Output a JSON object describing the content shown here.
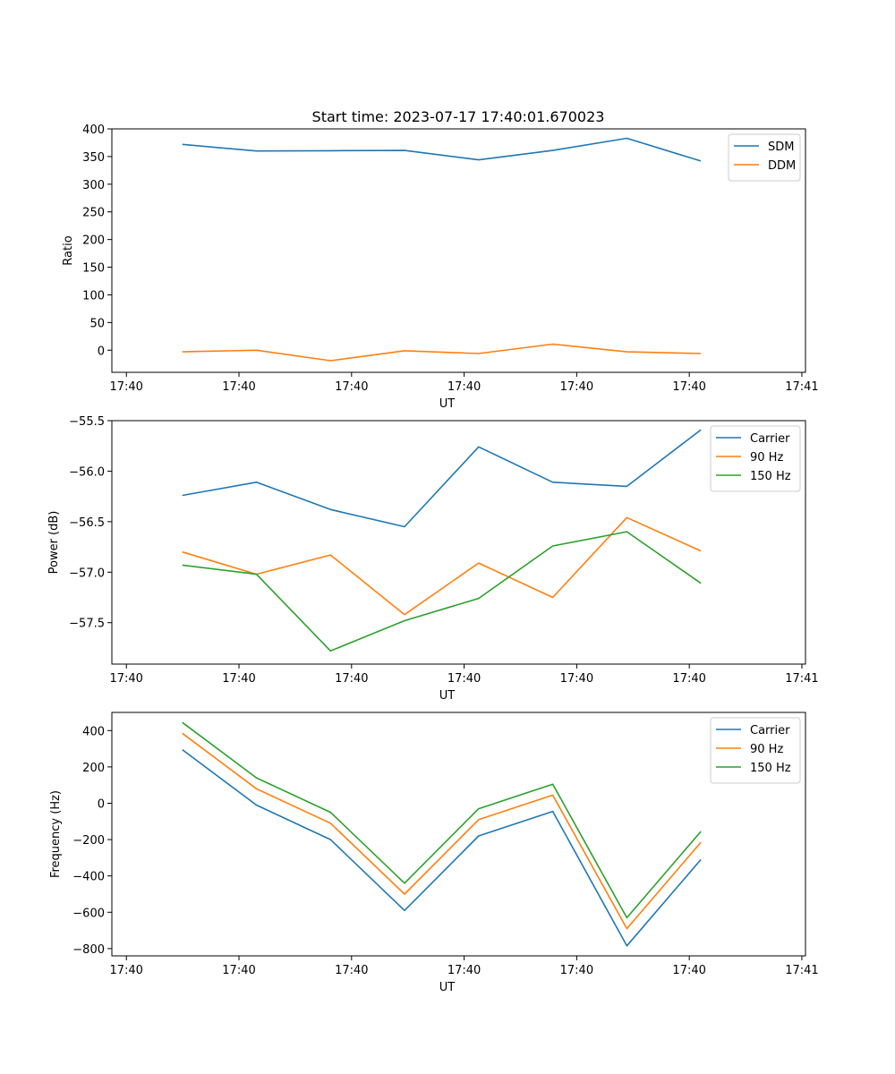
{
  "figure": {
    "title": "Start time: 2023-07-17 17:40:01.670023"
  },
  "chart_data": [
    {
      "type": "line",
      "xlabel": "UT",
      "ylabel": "Ratio",
      "xlim": [
        -0.35,
        9.2
      ],
      "xticks": [
        -0.15,
        1.4,
        2.95,
        4.5,
        6.05,
        7.6,
        9.15
      ],
      "xtick_labels": [
        "17:40",
        "17:40",
        "17:40",
        "17:40",
        "17:40",
        "17:40",
        "17:41"
      ],
      "ylim": [
        -40,
        400
      ],
      "yticks": [
        0,
        50,
        100,
        150,
        200,
        250,
        300,
        350,
        400
      ],
      "ytick_labels": [
        "0",
        "50",
        "100",
        "150",
        "200",
        "250",
        "300",
        "350",
        "400"
      ],
      "x": [
        0.62,
        1.64,
        2.66,
        3.68,
        4.7,
        5.72,
        6.74,
        7.76
      ],
      "legend": "top-right",
      "series": [
        {
          "name": "SDM",
          "color": "#1f77b4",
          "values": [
            372,
            360,
            360.5,
            361,
            344,
            361,
            383,
            342
          ]
        },
        {
          "name": "DDM",
          "color": "#ff7f0e",
          "values": [
            -3,
            0,
            -19,
            -1,
            -6,
            11,
            -3,
            -6
          ]
        }
      ]
    },
    {
      "type": "line",
      "xlabel": "UT",
      "ylabel": "Power (dB)",
      "xlim": [
        -0.35,
        9.2
      ],
      "xticks": [
        -0.15,
        1.4,
        2.95,
        4.5,
        6.05,
        7.6,
        9.15
      ],
      "xtick_labels": [
        "17:40",
        "17:40",
        "17:40",
        "17:40",
        "17:40",
        "17:40",
        "17:41"
      ],
      "ylim": [
        -57.91,
        -55.5
      ],
      "yticks": [
        -57.5,
        -57.0,
        -56.5,
        -56.0,
        -55.5
      ],
      "ytick_labels": [
        "−57.5",
        "−57.0",
        "−56.5",
        "−56.0",
        "−55.5"
      ],
      "x": [
        0.62,
        1.64,
        2.66,
        3.68,
        4.7,
        5.72,
        6.74,
        7.76
      ],
      "legend": "top-right",
      "series": [
        {
          "name": "Carrier",
          "color": "#1f77b4",
          "values": [
            -56.24,
            -56.11,
            -56.38,
            -56.55,
            -55.76,
            -56.11,
            -56.15,
            -55.59
          ]
        },
        {
          "name": "90 Hz",
          "color": "#ff7f0e",
          "values": [
            -56.8,
            -57.02,
            -56.83,
            -57.42,
            -56.91,
            -57.25,
            -56.46,
            -56.79
          ]
        },
        {
          "name": "150 Hz",
          "color": "#2ca02c",
          "values": [
            -56.93,
            -57.02,
            -57.78,
            -57.48,
            -57.26,
            -56.74,
            -56.6,
            -57.11
          ]
        }
      ]
    },
    {
      "type": "line",
      "xlabel": "UT",
      "ylabel": "Frequency (Hz)",
      "xlim": [
        -0.35,
        9.2
      ],
      "xticks": [
        -0.15,
        1.4,
        2.95,
        4.5,
        6.05,
        7.6,
        9.15
      ],
      "xtick_labels": [
        "17:40",
        "17:40",
        "17:40",
        "17:40",
        "17:40",
        "17:40",
        "17:41"
      ],
      "ylim": [
        -840,
        500
      ],
      "yticks": [
        -800,
        -600,
        -400,
        -200,
        0,
        200,
        400
      ],
      "ytick_labels": [
        "−800",
        "−600",
        "−400",
        "−200",
        "0",
        "200",
        "400"
      ],
      "x": [
        0.62,
        1.64,
        2.66,
        3.68,
        4.7,
        5.72,
        6.74,
        7.76
      ],
      "legend": "top-right",
      "series": [
        {
          "name": "Carrier",
          "color": "#1f77b4",
          "values": [
            295,
            -10,
            -200,
            -590,
            -180,
            -45,
            -785,
            -310
          ]
        },
        {
          "name": "90 Hz",
          "color": "#ff7f0e",
          "values": [
            385,
            80,
            -110,
            -500,
            -90,
            45,
            -690,
            -215
          ]
        },
        {
          "name": "150 Hz",
          "color": "#2ca02c",
          "values": [
            445,
            140,
            -50,
            -440,
            -30,
            105,
            -630,
            -155
          ]
        }
      ]
    }
  ]
}
